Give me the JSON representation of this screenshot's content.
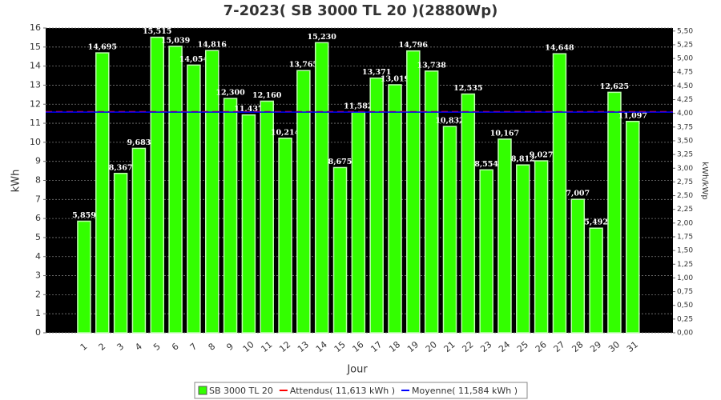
{
  "chart_data": {
    "type": "bar",
    "title": "7-2023( SB 3000 TL 20 )(2880Wp)",
    "xlabel": "Jour",
    "ylabel": "kWh",
    "y2label": "kWh/kWp",
    "categories": [
      "1",
      "2",
      "3",
      "4",
      "5",
      "6",
      "7",
      "8",
      "9",
      "10",
      "11",
      "12",
      "13",
      "14",
      "15",
      "16",
      "17",
      "18",
      "19",
      "20",
      "21",
      "22",
      "23",
      "24",
      "25",
      "26",
      "27",
      "28",
      "29",
      "30",
      "31"
    ],
    "series": [
      {
        "name": "SB 3000 TL 20",
        "color": "#33ff00",
        "values": [
          5.859,
          14.695,
          8.367,
          9.683,
          15.515,
          15.039,
          14.054,
          14.816,
          12.3,
          11.437,
          12.16,
          10.214,
          13.765,
          15.23,
          8.675,
          11.582,
          13.371,
          13.019,
          14.796,
          13.738,
          10.832,
          12.535,
          8.554,
          10.167,
          8.812,
          9.027,
          14.648,
          7.007,
          5.492,
          12.625,
          11.097
        ],
        "value_labels": [
          "5,859",
          "14,695",
          "8,367",
          "9,683",
          "15,515",
          "15,039",
          "14,054",
          "14,816",
          "12,300",
          "11,437",
          "12,160",
          "10,214",
          "13,765",
          "15,230",
          "8,675",
          "11,582",
          "13,371",
          "13,019",
          "14,796",
          "13,738",
          "10,832",
          "12,535",
          "8,554",
          "10,167",
          "8,812",
          "9,027",
          "14,648",
          "7,007",
          "5,492",
          "12,625",
          "11,097"
        ]
      },
      {
        "name": "Attendus( 11,613 kWh )",
        "color": "#ff0000",
        "value": 11.613
      },
      {
        "name": "Moyenne( 11,584 kWh )",
        "color": "#0000ff",
        "value": 11.584
      }
    ],
    "ylim": [
      0,
      16
    ],
    "yticks": [
      0,
      1,
      2,
      3,
      4,
      5,
      6,
      7,
      8,
      9,
      10,
      11,
      12,
      13,
      14,
      15,
      16
    ],
    "y2lim": [
      0,
      5.5556
    ],
    "y2ticks": [
      {
        "value": 0,
        "label": "0,00"
      },
      {
        "value": 0.25,
        "label": "0,25"
      },
      {
        "value": 0.5,
        "label": "0,50"
      },
      {
        "value": 0.75,
        "label": "0,75"
      },
      {
        "value": 1,
        "label": "1,00"
      },
      {
        "value": 1.25,
        "label": "1,25"
      },
      {
        "value": 1.5,
        "label": "1,50"
      },
      {
        "value": 1.75,
        "label": "1,75"
      },
      {
        "value": 2,
        "label": "2,00"
      },
      {
        "value": 2.25,
        "label": "2,25"
      },
      {
        "value": 2.5,
        "label": "2,50"
      },
      {
        "value": 2.75,
        "label": "2,75"
      },
      {
        "value": 3,
        "label": "3,00"
      },
      {
        "value": 3.25,
        "label": "3,25"
      },
      {
        "value": 3.5,
        "label": "3,50"
      },
      {
        "value": 3.75,
        "label": "3,75"
      },
      {
        "value": 4,
        "label": "4,00"
      },
      {
        "value": 4.25,
        "label": "4,25"
      },
      {
        "value": 4.5,
        "label": "4,50"
      },
      {
        "value": 4.75,
        "label": "4,75"
      },
      {
        "value": 5,
        "label": "5,00"
      },
      {
        "value": 5.25,
        "label": "5,25"
      },
      {
        "value": 5.5,
        "label": "5,50"
      }
    ],
    "grid": true
  }
}
